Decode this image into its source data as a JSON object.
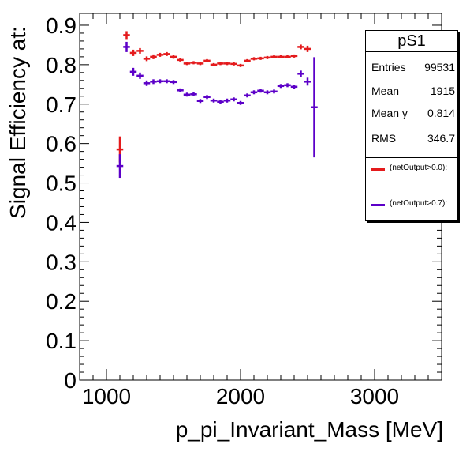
{
  "chart_data": {
    "type": "scatter",
    "ylabel": "Signal Efficiency at:",
    "xlabel": "p_pi_Invariant_Mass [MeV]",
    "xlim": [
      800,
      3500
    ],
    "ylim": [
      0,
      0.93
    ],
    "xticks": [
      "1000",
      "2000",
      "3000"
    ],
    "yticks": [
      "0",
      "0.1",
      "0.2",
      "0.3",
      "0.4",
      "0.5",
      "0.6",
      "0.7",
      "0.8",
      "0.9"
    ],
    "legend_position": "top-right",
    "grid": false,
    "series": [
      {
        "name": "(netOutput>0.0):",
        "color": "#e41a1c",
        "points": [
          {
            "x": 1100,
            "y": 0.585,
            "err": 0.033
          },
          {
            "x": 1150,
            "y": 0.875,
            "err": 0.01
          },
          {
            "x": 1200,
            "y": 0.83,
            "err": 0.008
          },
          {
            "x": 1250,
            "y": 0.835,
            "err": 0.007
          },
          {
            "x": 1300,
            "y": 0.815,
            "err": 0.006
          },
          {
            "x": 1350,
            "y": 0.82,
            "err": 0.006
          },
          {
            "x": 1400,
            "y": 0.825,
            "err": 0.005
          },
          {
            "x": 1450,
            "y": 0.827,
            "err": 0.005
          },
          {
            "x": 1500,
            "y": 0.82,
            "err": 0.005
          },
          {
            "x": 1550,
            "y": 0.812,
            "err": 0.004
          },
          {
            "x": 1600,
            "y": 0.803,
            "err": 0.004
          },
          {
            "x": 1650,
            "y": 0.805,
            "err": 0.004
          },
          {
            "x": 1700,
            "y": 0.803,
            "err": 0.004
          },
          {
            "x": 1750,
            "y": 0.81,
            "err": 0.004
          },
          {
            "x": 1800,
            "y": 0.8,
            "err": 0.004
          },
          {
            "x": 1850,
            "y": 0.803,
            "err": 0.004
          },
          {
            "x": 1900,
            "y": 0.803,
            "err": 0.004
          },
          {
            "x": 1950,
            "y": 0.802,
            "err": 0.004
          },
          {
            "x": 2000,
            "y": 0.798,
            "err": 0.004
          },
          {
            "x": 2050,
            "y": 0.81,
            "err": 0.004
          },
          {
            "x": 2100,
            "y": 0.815,
            "err": 0.004
          },
          {
            "x": 2150,
            "y": 0.816,
            "err": 0.004
          },
          {
            "x": 2200,
            "y": 0.818,
            "err": 0.004
          },
          {
            "x": 2250,
            "y": 0.82,
            "err": 0.004
          },
          {
            "x": 2300,
            "y": 0.82,
            "err": 0.004
          },
          {
            "x": 2350,
            "y": 0.82,
            "err": 0.004
          },
          {
            "x": 2400,
            "y": 0.822,
            "err": 0.004
          },
          {
            "x": 2450,
            "y": 0.845,
            "err": 0.006
          },
          {
            "x": 2500,
            "y": 0.84,
            "err": 0.008
          }
        ]
      },
      {
        "name": "(netOutput>0.7):",
        "color": "#5c00c8",
        "points": [
          {
            "x": 1100,
            "y": 0.543,
            "err": 0.03
          },
          {
            "x": 1150,
            "y": 0.845,
            "err": 0.013
          },
          {
            "x": 1200,
            "y": 0.782,
            "err": 0.01
          },
          {
            "x": 1250,
            "y": 0.772,
            "err": 0.008
          },
          {
            "x": 1300,
            "y": 0.753,
            "err": 0.007
          },
          {
            "x": 1350,
            "y": 0.757,
            "err": 0.006
          },
          {
            "x": 1400,
            "y": 0.758,
            "err": 0.005
          },
          {
            "x": 1450,
            "y": 0.758,
            "err": 0.005
          },
          {
            "x": 1500,
            "y": 0.756,
            "err": 0.005
          },
          {
            "x": 1550,
            "y": 0.735,
            "err": 0.005
          },
          {
            "x": 1600,
            "y": 0.724,
            "err": 0.005
          },
          {
            "x": 1650,
            "y": 0.725,
            "err": 0.005
          },
          {
            "x": 1700,
            "y": 0.708,
            "err": 0.005
          },
          {
            "x": 1750,
            "y": 0.718,
            "err": 0.005
          },
          {
            "x": 1800,
            "y": 0.709,
            "err": 0.005
          },
          {
            "x": 1850,
            "y": 0.706,
            "err": 0.005
          },
          {
            "x": 1900,
            "y": 0.709,
            "err": 0.005
          },
          {
            "x": 1950,
            "y": 0.712,
            "err": 0.005
          },
          {
            "x": 2000,
            "y": 0.703,
            "err": 0.005
          },
          {
            "x": 2050,
            "y": 0.722,
            "err": 0.005
          },
          {
            "x": 2100,
            "y": 0.73,
            "err": 0.005
          },
          {
            "x": 2150,
            "y": 0.734,
            "err": 0.005
          },
          {
            "x": 2200,
            "y": 0.73,
            "err": 0.005
          },
          {
            "x": 2250,
            "y": 0.732,
            "err": 0.005
          },
          {
            "x": 2300,
            "y": 0.746,
            "err": 0.005
          },
          {
            "x": 2350,
            "y": 0.748,
            "err": 0.005
          },
          {
            "x": 2400,
            "y": 0.744,
            "err": 0.005
          },
          {
            "x": 2450,
            "y": 0.777,
            "err": 0.008
          },
          {
            "x": 2500,
            "y": 0.757,
            "err": 0.01
          },
          {
            "x": 2550,
            "y": 0.692,
            "err": 0.127
          }
        ]
      }
    ]
  },
  "stats": {
    "title": "pS1",
    "rows": [
      {
        "key": "Entries",
        "value": "99531"
      },
      {
        "key": "Mean",
        "value": "1915"
      },
      {
        "key": "Mean y",
        "value": "0.814"
      },
      {
        "key": "RMS",
        "value": "346.7"
      }
    ],
    "legend": [
      "(netOutput>0.0):",
      "(netOutput>0.7):"
    ]
  }
}
